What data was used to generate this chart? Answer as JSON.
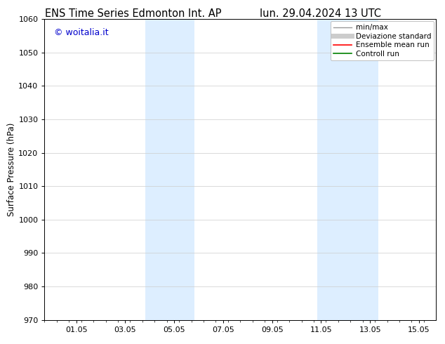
{
  "title_left": "ENS Time Series Edmonton Int. AP",
  "title_right": "lun. 29.04.2024 13 UTC",
  "ylabel": "Surface Pressure (hPa)",
  "ylim": [
    970,
    1060
  ],
  "yticks": [
    970,
    980,
    990,
    1000,
    1010,
    1020,
    1030,
    1040,
    1050,
    1060
  ],
  "xtick_labels": [
    "01.05",
    "03.05",
    "05.05",
    "07.05",
    "09.05",
    "11.05",
    "13.05",
    "15.05"
  ],
  "xtick_positions": [
    1.0,
    3.0,
    5.0,
    7.0,
    9.0,
    11.0,
    13.0,
    15.0
  ],
  "xlim": [
    -0.3,
    15.7
  ],
  "shaded_bands": [
    {
      "x_start": 3.83,
      "x_end": 5.83
    },
    {
      "x_start": 10.83,
      "x_end": 13.33
    }
  ],
  "shade_color": "#ddeeff",
  "watermark_text": "© woitalia.it",
  "watermark_color": "#0000cc",
  "legend_entries": [
    {
      "label": "min/max",
      "color": "#999999",
      "lw": 1.0,
      "style": "solid"
    },
    {
      "label": "Deviazione standard",
      "color": "#cccccc",
      "lw": 5,
      "style": "solid"
    },
    {
      "label": "Ensemble mean run",
      "color": "#ff0000",
      "lw": 1.2,
      "style": "solid"
    },
    {
      "label": "Controll run",
      "color": "#008000",
      "lw": 1.2,
      "style": "solid"
    }
  ],
  "bg_color": "#ffffff",
  "grid_color": "#cccccc",
  "title_fontsize": 10.5,
  "axis_label_fontsize": 8.5,
  "tick_fontsize": 8,
  "watermark_fontsize": 9,
  "legend_fontsize": 7.5
}
